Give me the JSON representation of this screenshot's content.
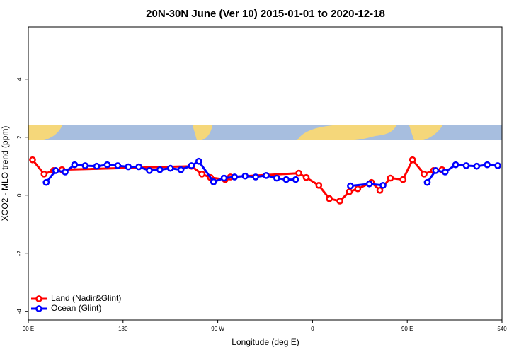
{
  "chart_data": {
    "type": "line",
    "title": "20N-30N June (Ver 10)   2015-01-01 to 2020-12-18",
    "x_label": "Longitude (deg E)",
    "y_label": "XCO2 - MLO trend (ppm)",
    "xlim": [
      90,
      540
    ],
    "xticks": [
      {
        "value": 90,
        "label": "90 E"
      },
      180,
      {
        "value": 270,
        "label": "90 W"
      },
      {
        "value": 360,
        "label": "0"
      },
      {
        "value": 450,
        "label": "90 E"
      },
      540
    ],
    "ylim": [
      -4.3,
      5.8
    ],
    "yticks": [
      -4,
      -2,
      0,
      2,
      4
    ],
    "legend": "bottom-left",
    "series": [
      {
        "name": "Land (Nadir&Glint)",
        "color": "#ff0000",
        "x": [
          94,
          105,
          114,
          122,
          245,
          255,
          263,
          277,
          282,
          347,
          354,
          366,
          376,
          386,
          395,
          403,
          416,
          424,
          434,
          446,
          455,
          466,
          475,
          483
        ],
        "values": [
          1.22,
          0.73,
          0.85,
          0.88,
          1.0,
          0.73,
          0.61,
          0.54,
          0.63,
          0.76,
          0.61,
          0.34,
          -0.12,
          -0.2,
          0.12,
          0.22,
          0.44,
          0.17,
          0.59,
          0.54,
          1.22,
          0.73,
          0.85,
          0.88
        ]
      },
      {
        "name": "Ocean (Glint)",
        "color": "#0000ff",
        "x": [
          107,
          116,
          125,
          134,
          144,
          155,
          165,
          175,
          185,
          195,
          205,
          215,
          225,
          235,
          245,
          252,
          266,
          276,
          286,
          296,
          306,
          316,
          326,
          335,
          344,
          370,
          396,
          414,
          427,
          450,
          469,
          477,
          486,
          496,
          506,
          516,
          526,
          536
        ],
        "values": [
          0.44,
          0.85,
          0.8,
          1.05,
          1.02,
          1.0,
          1.05,
          1.02,
          0.98,
          0.98,
          0.85,
          0.88,
          0.93,
          0.88,
          1.02,
          1.17,
          0.46,
          0.59,
          0.63,
          0.66,
          0.63,
          0.68,
          0.59,
          0.54,
          0.54,
          null,
          0.32,
          0.39,
          0.34,
          null,
          0.44,
          0.85,
          0.8,
          1.05,
          1.02,
          1.0,
          1.05,
          1.02
        ]
      }
    ]
  }
}
